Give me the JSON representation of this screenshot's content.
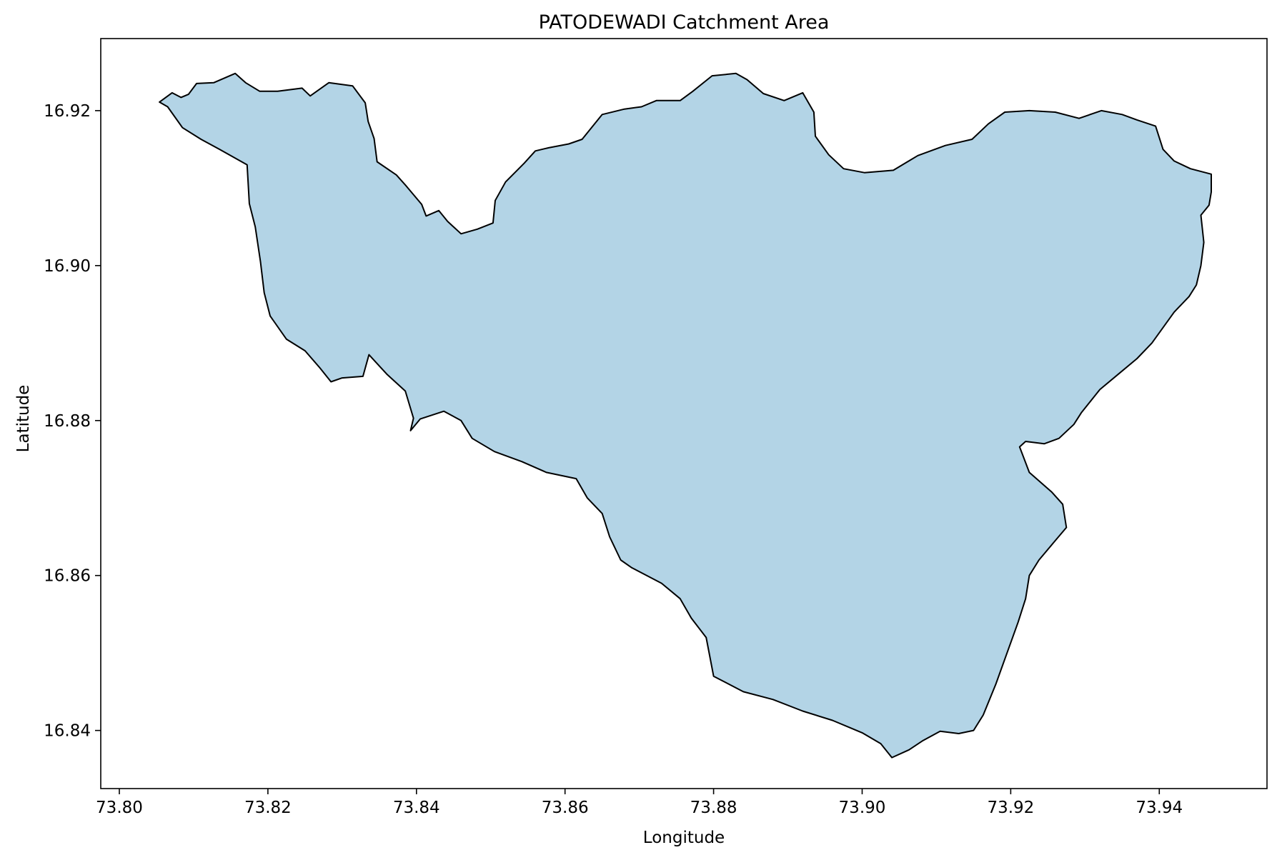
{
  "title": "PATODEWADI Catchment Area",
  "colors": {
    "fill": "#b3d4e6",
    "outline": "#000000",
    "frame": "#000000",
    "background": "#ffffff"
  },
  "chart_data": {
    "type": "map",
    "title": "PATODEWADI Catchment Area",
    "xlabel": "Longitude",
    "ylabel": "Latitude",
    "xlim": [
      73.7975,
      73.9545
    ],
    "ylim": [
      16.8325,
      16.9293
    ],
    "xticks": [
      73.8,
      73.82,
      73.84,
      73.86,
      73.88,
      73.9,
      73.92,
      73.94
    ],
    "yticks": [
      16.84,
      16.86,
      16.88,
      16.9,
      16.92
    ],
    "xtick_labels": [
      "73.80",
      "73.82",
      "73.84",
      "73.86",
      "73.88",
      "73.90",
      "73.92",
      "73.94"
    ],
    "ytick_labels": [
      "16.84",
      "16.86",
      "16.88",
      "16.90",
      "16.92"
    ],
    "grid": false,
    "polygon": [
      [
        73.8054,
        16.9211
      ],
      [
        73.8071,
        16.9223
      ],
      [
        73.8083,
        16.9217
      ],
      [
        73.8093,
        16.9221
      ],
      [
        73.8104,
        16.9235
      ],
      [
        73.8127,
        16.9236
      ],
      [
        73.8156,
        16.9248
      ],
      [
        73.817,
        16.9236
      ],
      [
        73.8189,
        16.9225
      ],
      [
        73.8213,
        16.9225
      ],
      [
        73.8246,
        16.9229
      ],
      [
        73.8257,
        16.9219
      ],
      [
        73.8282,
        16.9236
      ],
      [
        73.8314,
        16.9232
      ],
      [
        73.8331,
        16.921
      ],
      [
        73.8335,
        16.9186
      ],
      [
        73.8343,
        16.9164
      ],
      [
        73.8347,
        16.9134
      ],
      [
        73.8373,
        16.9117
      ],
      [
        73.8386,
        16.9103
      ],
      [
        73.8407,
        16.9079
      ],
      [
        73.8413,
        16.9064
      ],
      [
        73.843,
        16.9071
      ],
      [
        73.8442,
        16.9057
      ],
      [
        73.846,
        16.9041
      ],
      [
        73.8482,
        16.9047
      ],
      [
        73.8503,
        16.9055
      ],
      [
        73.8506,
        16.9084
      ],
      [
        73.852,
        16.9108
      ],
      [
        73.8545,
        16.9132
      ],
      [
        73.856,
        16.9148
      ],
      [
        73.8578,
        16.9152
      ],
      [
        73.8605,
        16.9157
      ],
      [
        73.8623,
        16.9163
      ],
      [
        73.865,
        16.9195
      ],
      [
        73.868,
        16.9202
      ],
      [
        73.8703,
        16.9205
      ],
      [
        73.8723,
        16.9213
      ],
      [
        73.8755,
        16.9213
      ],
      [
        73.8772,
        16.9225
      ],
      [
        73.8798,
        16.9245
      ],
      [
        73.883,
        16.9248
      ],
      [
        73.8845,
        16.924
      ],
      [
        73.8867,
        16.9222
      ],
      [
        73.8895,
        16.9213
      ],
      [
        73.892,
        16.9223
      ],
      [
        73.8935,
        16.9198
      ],
      [
        73.8937,
        16.9167
      ],
      [
        73.8955,
        16.9143
      ],
      [
        73.8975,
        16.9125
      ],
      [
        73.9003,
        16.912
      ],
      [
        73.9042,
        16.9123
      ],
      [
        73.9075,
        16.9142
      ],
      [
        73.9112,
        16.9155
      ],
      [
        73.9148,
        16.9163
      ],
      [
        73.917,
        16.9183
      ],
      [
        73.9192,
        16.9198
      ],
      [
        73.9225,
        16.92
      ],
      [
        73.926,
        16.9198
      ],
      [
        73.9292,
        16.919
      ],
      [
        73.9322,
        16.92
      ],
      [
        73.935,
        16.9195
      ],
      [
        73.937,
        16.9188
      ],
      [
        73.9395,
        16.918
      ],
      [
        73.9405,
        16.915
      ],
      [
        73.942,
        16.9135
      ],
      [
        73.9442,
        16.9125
      ],
      [
        73.947,
        16.9118
      ],
      [
        73.947,
        16.9095
      ],
      [
        73.9467,
        16.9078
      ],
      [
        73.9456,
        16.9065
      ],
      [
        73.946,
        16.903
      ],
      [
        73.9456,
        16.9
      ],
      [
        73.945,
        16.8975
      ],
      [
        73.944,
        16.896
      ],
      [
        73.942,
        16.894
      ],
      [
        73.939,
        16.89
      ],
      [
        73.937,
        16.888
      ],
      [
        73.9345,
        16.886
      ],
      [
        73.932,
        16.884
      ],
      [
        73.9295,
        16.881
      ],
      [
        73.9285,
        16.8795
      ],
      [
        73.9265,
        16.8777
      ],
      [
        73.9245,
        16.877
      ],
      [
        73.922,
        16.8773
      ],
      [
        73.9212,
        16.8766
      ],
      [
        73.9225,
        16.8733
      ],
      [
        73.9255,
        16.8708
      ],
      [
        73.927,
        16.8692
      ],
      [
        73.9275,
        16.8662
      ],
      [
        73.926,
        16.8645
      ],
      [
        73.9238,
        16.862
      ],
      [
        73.9225,
        16.86
      ],
      [
        73.922,
        16.857
      ],
      [
        73.921,
        16.854
      ],
      [
        73.9195,
        16.85
      ],
      [
        73.918,
        16.846
      ],
      [
        73.9163,
        16.842
      ],
      [
        73.915,
        16.84
      ],
      [
        73.913,
        16.8396
      ],
      [
        73.9105,
        16.8399
      ],
      [
        73.9082,
        16.8387
      ],
      [
        73.9063,
        16.8375
      ],
      [
        73.904,
        16.8365
      ],
      [
        73.9025,
        16.8383
      ],
      [
        73.9,
        16.8397
      ],
      [
        73.896,
        16.8413
      ],
      [
        73.892,
        16.8425
      ],
      [
        73.888,
        16.844
      ],
      [
        73.884,
        16.845
      ],
      [
        73.88,
        16.847
      ],
      [
        73.879,
        16.852
      ],
      [
        73.877,
        16.8545
      ],
      [
        73.8755,
        16.857
      ],
      [
        73.873,
        16.859
      ],
      [
        73.869,
        16.861
      ],
      [
        73.8675,
        16.862
      ],
      [
        73.866,
        16.865
      ],
      [
        73.865,
        16.868
      ],
      [
        73.863,
        16.87
      ],
      [
        73.8615,
        16.8725
      ],
      [
        73.8575,
        16.8733
      ],
      [
        73.8542,
        16.8747
      ],
      [
        73.8505,
        16.876
      ],
      [
        73.8475,
        16.8777
      ],
      [
        73.846,
        16.88
      ],
      [
        73.8437,
        16.8812
      ],
      [
        73.8405,
        16.8802
      ],
      [
        73.8392,
        16.8787
      ],
      [
        73.8396,
        16.8803
      ],
      [
        73.8385,
        16.8838
      ],
      [
        73.836,
        16.886
      ],
      [
        73.8336,
        16.8885
      ],
      [
        73.8328,
        16.8857
      ],
      [
        73.83,
        16.8855
      ],
      [
        73.8285,
        16.885
      ],
      [
        73.827,
        16.8868
      ],
      [
        73.825,
        16.889
      ],
      [
        73.8225,
        16.8905
      ],
      [
        73.8203,
        16.8935
      ],
      [
        73.8195,
        16.8965
      ],
      [
        73.819,
        16.9005
      ],
      [
        73.8183,
        16.905
      ],
      [
        73.8175,
        16.908
      ],
      [
        73.8172,
        16.913
      ],
      [
        73.8135,
        16.915
      ],
      [
        73.811,
        16.9163
      ],
      [
        73.8085,
        16.9178
      ],
      [
        73.8065,
        16.9205
      ],
      [
        73.8054,
        16.9211
      ]
    ]
  }
}
